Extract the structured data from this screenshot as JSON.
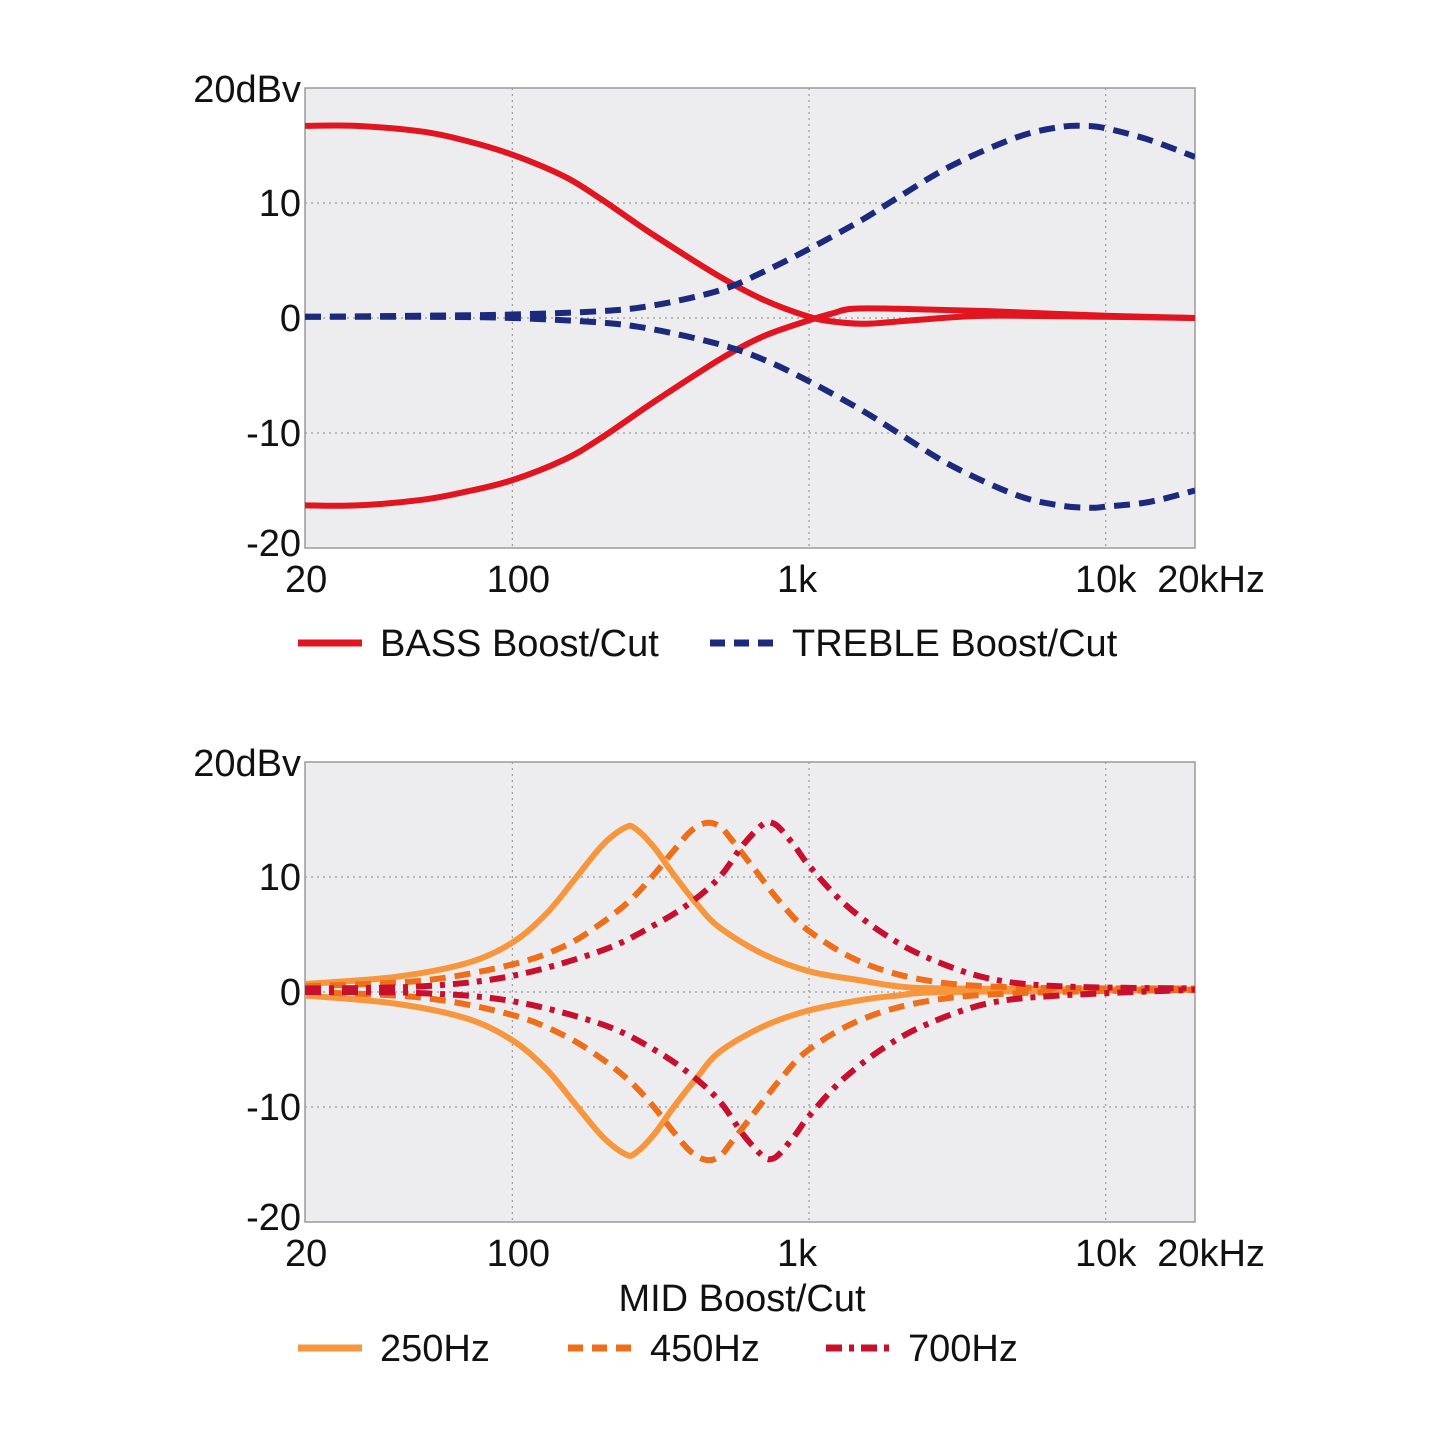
{
  "chart_data": [
    {
      "type": "line",
      "x_scale": "log",
      "xlim": [
        20,
        20000
      ],
      "ylim": [
        -20,
        20
      ],
      "grid": true,
      "x_ticks": [
        {
          "value": 20,
          "label": "20"
        },
        {
          "value": 100,
          "label": "100"
        },
        {
          "value": 1000,
          "label": "1k"
        },
        {
          "value": 10000,
          "label": "10k"
        },
        {
          "value": 20000,
          "label": "20kHz"
        }
      ],
      "y_ticks": [
        {
          "value": 20,
          "label": "20dBv"
        },
        {
          "value": 10,
          "label": "10"
        },
        {
          "value": 0,
          "label": "0"
        },
        {
          "value": -10,
          "label": "-10"
        },
        {
          "value": -20,
          "label": "-20"
        }
      ],
      "xlabel": "",
      "legend_position": "bottom",
      "legend": [
        {
          "label": "BASS Boost/Cut",
          "color": "#e2141f",
          "style": "solid"
        },
        {
          "label": "TREBLE Boost/Cut",
          "color": "#1c2a7d",
          "style": "dashed"
        }
      ],
      "series": [
        {
          "group": "BASS Boost/Cut",
          "variant": "boost",
          "color": "#e2141f",
          "style": "solid",
          "points": [
            [
              20,
              16.7
            ],
            [
              30,
              16.7
            ],
            [
              50,
              16.2
            ],
            [
              70,
              15.4
            ],
            [
              100,
              14.2
            ],
            [
              150,
              12.3
            ],
            [
              200,
              10.3
            ],
            [
              300,
              7.2
            ],
            [
              500,
              3.6
            ],
            [
              700,
              1.6
            ],
            [
              1000,
              0.1
            ],
            [
              1200,
              -0.3
            ],
            [
              1500,
              -0.5
            ],
            [
              1800,
              -0.4
            ],
            [
              2500,
              -0.1
            ],
            [
              4000,
              0.2
            ],
            [
              10000,
              0.1
            ],
            [
              20000,
              0
            ]
          ]
        },
        {
          "group": "BASS Boost/Cut",
          "variant": "cut",
          "color": "#e2141f",
          "style": "solid",
          "points": [
            [
              20,
              -16.3
            ],
            [
              30,
              -16.3
            ],
            [
              50,
              -15.8
            ],
            [
              70,
              -15.1
            ],
            [
              100,
              -14.1
            ],
            [
              150,
              -12.3
            ],
            [
              200,
              -10.4
            ],
            [
              300,
              -7.3
            ],
            [
              500,
              -3.6
            ],
            [
              700,
              -1.6
            ],
            [
              1000,
              -0.2
            ],
            [
              1200,
              0.4
            ],
            [
              1400,
              0.8
            ],
            [
              2000,
              0.8
            ],
            [
              4000,
              0.6
            ],
            [
              10000,
              0.2
            ],
            [
              20000,
              0
            ]
          ]
        },
        {
          "group": "TREBLE Boost/Cut",
          "variant": "boost",
          "color": "#1c2a7d",
          "style": "dashed",
          "points": [
            [
              20,
              0.1
            ],
            [
              50,
              0.2
            ],
            [
              100,
              0.3
            ],
            [
              200,
              0.6
            ],
            [
              300,
              1.1
            ],
            [
              500,
              2.4
            ],
            [
              700,
              4
            ],
            [
              1000,
              6
            ],
            [
              1500,
              8.5
            ],
            [
              2000,
              10.5
            ],
            [
              3000,
              13.2
            ],
            [
              5000,
              15.7
            ],
            [
              7000,
              16.6
            ],
            [
              8500,
              16.7
            ],
            [
              10000,
              16.5
            ],
            [
              14000,
              15.5
            ],
            [
              20000,
              14
            ]
          ]
        },
        {
          "group": "TREBLE Boost/Cut",
          "variant": "cut",
          "color": "#1c2a7d",
          "style": "dashed",
          "points": [
            [
              20,
              0.1
            ],
            [
              50,
              0.1
            ],
            [
              100,
              0
            ],
            [
              200,
              -0.4
            ],
            [
              300,
              -1
            ],
            [
              500,
              -2.3
            ],
            [
              700,
              -3.6
            ],
            [
              1000,
              -5.5
            ],
            [
              1500,
              -8
            ],
            [
              2000,
              -10
            ],
            [
              3000,
              -12.8
            ],
            [
              5000,
              -15.4
            ],
            [
              7000,
              -16.3
            ],
            [
              9000,
              -16.5
            ],
            [
              10000,
              -16.4
            ],
            [
              14000,
              -16
            ],
            [
              20000,
              -15
            ]
          ]
        }
      ]
    },
    {
      "type": "line",
      "x_scale": "log",
      "xlim": [
        20,
        20000
      ],
      "ylim": [
        -20,
        20
      ],
      "grid": true,
      "x_ticks": [
        {
          "value": 20,
          "label": "20"
        },
        {
          "value": 100,
          "label": "100"
        },
        {
          "value": 1000,
          "label": "1k"
        },
        {
          "value": 10000,
          "label": "10k"
        },
        {
          "value": 20000,
          "label": "20kHz"
        }
      ],
      "y_ticks": [
        {
          "value": 20,
          "label": "20dBv"
        },
        {
          "value": 10,
          "label": "10"
        },
        {
          "value": 0,
          "label": "0"
        },
        {
          "value": -10,
          "label": "-10"
        },
        {
          "value": -20,
          "label": "-20"
        }
      ],
      "xlabel": "MID Boost/Cut",
      "legend_position": "bottom",
      "legend": [
        {
          "label": "250Hz",
          "color": "#f7963c",
          "style": "solid"
        },
        {
          "label": "450Hz",
          "color": "#ef6e1a",
          "style": "dashed"
        },
        {
          "label": "700Hz",
          "color": "#c8102e",
          "style": "dashdot"
        }
      ],
      "series": [
        {
          "group": "250Hz",
          "variant": "boost",
          "color": "#f7963c",
          "style": "solid",
          "points": [
            [
              20,
              0.7
            ],
            [
              40,
              1.3
            ],
            [
              70,
              2.5
            ],
            [
              100,
              4.3
            ],
            [
              130,
              6.8
            ],
            [
              160,
              9.6
            ],
            [
              200,
              12.7
            ],
            [
              240,
              14.3
            ],
            [
              260,
              14.2
            ],
            [
              300,
              12.6
            ],
            [
              350,
              10.2
            ],
            [
              420,
              7.6
            ],
            [
              500,
              5.6
            ],
            [
              700,
              3.3
            ],
            [
              1000,
              1.8
            ],
            [
              1500,
              1
            ],
            [
              2000,
              0.5
            ],
            [
              3000,
              0.3
            ],
            [
              20000,
              0.2
            ]
          ]
        },
        {
          "group": "250Hz",
          "variant": "cut",
          "color": "#f7963c",
          "style": "solid",
          "points": [
            [
              20,
              -0.3
            ],
            [
              40,
              -1
            ],
            [
              70,
              -2.3
            ],
            [
              100,
              -4.2
            ],
            [
              130,
              -6.7
            ],
            [
              160,
              -9.5
            ],
            [
              200,
              -12.5
            ],
            [
              240,
              -14.1
            ],
            [
              260,
              -14
            ],
            [
              300,
              -12.4
            ],
            [
              350,
              -10
            ],
            [
              420,
              -7.4
            ],
            [
              500,
              -5.2
            ],
            [
              700,
              -3
            ],
            [
              1000,
              -1.6
            ],
            [
              1500,
              -0.7
            ],
            [
              2000,
              -0.3
            ],
            [
              3000,
              0
            ],
            [
              20000,
              0.2
            ]
          ]
        },
        {
          "group": "450Hz",
          "variant": "boost",
          "color": "#ef6e1a",
          "style": "dashed",
          "points": [
            [
              20,
              0.5
            ],
            [
              50,
              1
            ],
            [
              100,
              2.4
            ],
            [
              150,
              4
            ],
            [
              200,
              6
            ],
            [
              250,
              8
            ],
            [
              300,
              10.2
            ],
            [
              350,
              12.3
            ],
            [
              400,
              14
            ],
            [
              450,
              14.7
            ],
            [
              500,
              14.4
            ],
            [
              550,
              13.2
            ],
            [
              650,
              10.8
            ],
            [
              800,
              7.8
            ],
            [
              1000,
              5.3
            ],
            [
              1500,
              2.6
            ],
            [
              2500,
              1
            ],
            [
              5000,
              0.4
            ],
            [
              20000,
              0.3
            ]
          ]
        },
        {
          "group": "450Hz",
          "variant": "cut",
          "color": "#ef6e1a",
          "style": "dashed",
          "points": [
            [
              20,
              0
            ],
            [
              50,
              -0.5
            ],
            [
              100,
              -2
            ],
            [
              150,
              -3.8
            ],
            [
              200,
              -5.8
            ],
            [
              250,
              -7.8
            ],
            [
              300,
              -10
            ],
            [
              350,
              -12.2
            ],
            [
              400,
              -13.9
            ],
            [
              450,
              -14.6
            ],
            [
              500,
              -14.3
            ],
            [
              550,
              -13
            ],
            [
              650,
              -10.6
            ],
            [
              800,
              -7.6
            ],
            [
              1000,
              -5
            ],
            [
              1500,
              -2.4
            ],
            [
              2500,
              -0.8
            ],
            [
              5000,
              -0.1
            ],
            [
              20000,
              0.2
            ]
          ]
        },
        {
          "group": "700Hz",
          "variant": "boost",
          "color": "#c8102e",
          "style": "dashdot",
          "points": [
            [
              20,
              0.3
            ],
            [
              50,
              0.5
            ],
            [
              100,
              1.4
            ],
            [
              200,
              3.6
            ],
            [
              300,
              5.8
            ],
            [
              400,
              7.8
            ],
            [
              500,
              10
            ],
            [
              600,
              12.8
            ],
            [
              700,
              14.6
            ],
            [
              750,
              14.7
            ],
            [
              800,
              14.2
            ],
            [
              900,
              12.6
            ],
            [
              1000,
              11
            ],
            [
              1300,
              7.8
            ],
            [
              1800,
              5
            ],
            [
              2500,
              3
            ],
            [
              4000,
              1.2
            ],
            [
              7000,
              0.5
            ],
            [
              20000,
              0.3
            ]
          ]
        },
        {
          "group": "700Hz",
          "variant": "cut",
          "color": "#c8102e",
          "style": "dashdot",
          "points": [
            [
              20,
              0
            ],
            [
              50,
              -0.1
            ],
            [
              100,
              -0.8
            ],
            [
              200,
              -2.8
            ],
            [
              300,
              -5
            ],
            [
              400,
              -7.2
            ],
            [
              500,
              -9.5
            ],
            [
              600,
              -12.4
            ],
            [
              700,
              -14.3
            ],
            [
              750,
              -14.5
            ],
            [
              800,
              -14
            ],
            [
              900,
              -12.4
            ],
            [
              1000,
              -10.8
            ],
            [
              1300,
              -7.6
            ],
            [
              1800,
              -4.8
            ],
            [
              2500,
              -2.8
            ],
            [
              4000,
              -1
            ],
            [
              7000,
              -0.3
            ],
            [
              20000,
              0.2
            ]
          ]
        }
      ]
    }
  ]
}
